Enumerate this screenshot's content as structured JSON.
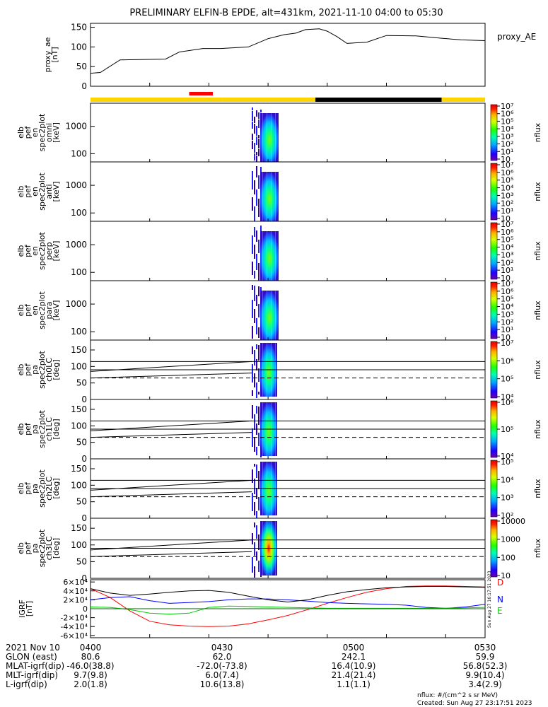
{
  "figure": {
    "title": "PRELIMINARY ELFIN-B EPDE, alt=431km, 2021-11-10 04:00 to 05:30",
    "created": "Created: Sun Aug 27 23:17:51 2023",
    "nflux_units": "nflux: #/(cm^2 s sr MeV)",
    "side_stamp": "Sun Aug 27 16:17:51 2023"
  },
  "chart_data": [
    {
      "type": "line",
      "panel": "proxy_ae",
      "ylabel_lines": [
        "proxy_ae",
        "[nT]"
      ],
      "legend": "proxy_AE",
      "ylim": [
        0,
        160
      ],
      "yticks": [
        "0",
        "50",
        "100",
        "150"
      ],
      "x_minutes": [
        0,
        5,
        15,
        25,
        38,
        45,
        57,
        66,
        80,
        90,
        98,
        104,
        109,
        116,
        120,
        125,
        130,
        140,
        150,
        165,
        178,
        188,
        200
      ],
      "values": [
        33,
        35,
        67,
        68,
        69,
        87,
        96,
        96,
        100,
        121,
        131,
        135,
        144,
        146,
        140,
        126,
        109,
        112,
        129,
        128,
        122,
        118,
        116
      ],
      "series": [
        {
          "name": "proxy_AE",
          "color": "#000000"
        }
      ]
    },
    {
      "type": "bar",
      "panel": "status_bar",
      "segments": [
        {
          "start_min": 0,
          "end_min": 67,
          "color": "#ffd500"
        },
        {
          "start_min": 67,
          "end_min": 114,
          "color": "#ffd500"
        },
        {
          "start_min": 114,
          "end_min": 178,
          "color": "#000000"
        },
        {
          "start_min": 178,
          "end_min": 200,
          "color": "#ffd500"
        }
      ],
      "markers": [
        {
          "start_min": 50,
          "end_min": 62,
          "color": "#ff0000"
        }
      ]
    },
    {
      "type": "heatmap",
      "panel": "spec_omni",
      "ylabel_lines": [
        "elb",
        "pef",
        "en",
        "spec2plot",
        "omni",
        "[keV]"
      ],
      "yscale": "log",
      "yticks": [
        "100",
        "1000"
      ],
      "zlabel": "nflux",
      "zticks": [
        "10",
        "10¹",
        "10²",
        "10³",
        "10⁴",
        "10⁵",
        "10⁶",
        "10⁷"
      ]
    },
    {
      "type": "heatmap",
      "panel": "spec_anti",
      "ylabel_lines": [
        "elb",
        "pef",
        "en",
        "spec2plot",
        "anti",
        "[keV]"
      ],
      "yscale": "log",
      "yticks": [
        "100",
        "1000"
      ],
      "zlabel": "nflux",
      "zticks": [
        "10",
        "10¹",
        "10²",
        "10³",
        "10⁴",
        "10⁵",
        "10⁶",
        "10⁷"
      ]
    },
    {
      "type": "heatmap",
      "panel": "spec_perp",
      "ylabel_lines": [
        "elb",
        "pef",
        "en",
        "spec2plot",
        "perp",
        "[keV]"
      ],
      "yscale": "log",
      "yticks": [
        "100",
        "1000"
      ],
      "zlabel": "nflux",
      "zticks": [
        "10",
        "10¹",
        "10²",
        "10³",
        "10⁴",
        "10⁵",
        "10⁶",
        "10⁷"
      ]
    },
    {
      "type": "heatmap",
      "panel": "spec_para",
      "ylabel_lines": [
        "elb",
        "pef",
        "en",
        "spec2plot",
        "para",
        "[keV]"
      ],
      "yscale": "log",
      "yticks": [
        "100",
        "1000"
      ],
      "zlabel": "nflux",
      "zticks": [
        "10",
        "10¹",
        "10²",
        "10³",
        "10⁴",
        "10⁵",
        "10⁶",
        "10⁷"
      ]
    },
    {
      "type": "heatmap",
      "panel": "pa_ch0",
      "ylabel_lines": [
        "elb",
        "pef",
        "pa",
        "spec2plot",
        "ch0LC",
        "[deg]"
      ],
      "ylim": [
        0,
        180
      ],
      "yticks": [
        "0",
        "50",
        "100",
        "150"
      ],
      "zlabel": "nflux",
      "zticks": [
        "10⁴",
        "10⁵",
        "10⁶",
        "10⁷"
      ]
    },
    {
      "type": "heatmap",
      "panel": "pa_ch1",
      "ylabel_lines": [
        "elb",
        "pef",
        "pa",
        "spec2plot",
        "ch1LC",
        "[deg]"
      ],
      "ylim": [
        0,
        180
      ],
      "yticks": [
        "0",
        "50",
        "100",
        "150"
      ],
      "zlabel": "nflux",
      "zticks": [
        "10⁴",
        "10⁵",
        "10⁶"
      ]
    },
    {
      "type": "heatmap",
      "panel": "pa_ch2",
      "ylabel_lines": [
        "elb",
        "pef",
        "pa",
        "spec2plot",
        "ch2LC",
        "[deg]"
      ],
      "ylim": [
        0,
        180
      ],
      "yticks": [
        "0",
        "50",
        "100",
        "150"
      ],
      "zlabel": "nflux",
      "zticks": [
        "10²",
        "10³",
        "10⁴",
        "10⁵"
      ]
    },
    {
      "type": "heatmap",
      "panel": "pa_ch3",
      "ylabel_lines": [
        "elb",
        "pef",
        "pa",
        "spec2plot",
        "ch3LC",
        "[deg]"
      ],
      "ylim": [
        0,
        180
      ],
      "yticks": [
        "0",
        "50",
        "100",
        "150"
      ],
      "zlabel": "nflux",
      "zticks": [
        "10",
        "100",
        "1000",
        "10000"
      ]
    },
    {
      "type": "line",
      "panel": "igrf",
      "ylabel_lines": [
        "IGRF",
        "[nT]"
      ],
      "ylim": [
        -65000,
        65000
      ],
      "yticks": [
        "-6×10⁴",
        "-4×10⁴",
        "-2×10⁴",
        "0",
        "2×10⁴",
        "4×10⁴",
        "6×10⁴"
      ],
      "x_minutes": [
        0,
        10,
        20,
        30,
        40,
        50,
        60,
        70,
        80,
        90,
        100,
        110,
        120,
        130,
        140,
        150,
        160,
        170,
        180,
        190,
        200
      ],
      "series": [
        {
          "name": "D",
          "color": "#ff0000",
          "values": [
            45000,
            25000,
            -5000,
            -28000,
            -36000,
            -39000,
            -40000,
            -39000,
            -34000,
            -25000,
            -15000,
            -2000,
            12000,
            25000,
            37000,
            45000,
            50000,
            51000,
            51000,
            50000,
            49000
          ]
        },
        {
          "name": "N",
          "color": "#0000ff",
          "values": [
            20000,
            25000,
            27000,
            18000,
            12000,
            14000,
            16000,
            20000,
            22000,
            22000,
            20000,
            17000,
            14000,
            12000,
            11000,
            10000,
            8000,
            3000,
            1000,
            4000,
            10000
          ]
        },
        {
          "name": "E",
          "color": "#00cc00",
          "values": [
            4000,
            3000,
            -2000,
            -10000,
            -12000,
            -10000,
            3000,
            6000,
            5000,
            4000,
            3000,
            2000,
            1000,
            1000,
            1000,
            1000,
            1000,
            1000,
            1000,
            2000,
            3000
          ]
        },
        {
          "name": "",
          "color": "#000000",
          "values": [
            45000,
            35000,
            30000,
            33000,
            37000,
            40000,
            41000,
            37000,
            28000,
            20000,
            15000,
            20000,
            30000,
            38000,
            43000,
            47000,
            49000,
            50000,
            50000,
            49000,
            48000
          ]
        },
        {
          "name": "",
          "color": "#006400",
          "values": [
            0,
            0,
            0,
            0,
            0,
            0,
            0,
            0,
            0,
            0,
            0,
            0,
            0,
            0,
            0,
            0,
            0,
            0,
            0,
            0,
            0
          ]
        }
      ]
    }
  ],
  "ephemeris": {
    "date_label": "2021 Nov 10",
    "times": [
      "0400",
      "0430",
      "0500",
      "0530"
    ],
    "rows": [
      {
        "label": "GLON (east)",
        "values": [
          "80.6",
          "62.0",
          "242.1",
          "59.9"
        ]
      },
      {
        "label": "MLAT-igrf(dip)",
        "values": [
          "-46.0(38.8)",
          "-72.0(-73.8)",
          "16.4(10.9)",
          "56.8(52.3)"
        ]
      },
      {
        "label": "MLT-igrf(dip)",
        "values": [
          "9.7(9.8)",
          "6.0(7.4)",
          "21.4(21.4)",
          "9.9(10.4)"
        ]
      },
      {
        "label": "L-igrf(dip)",
        "values": [
          "2.0(1.8)",
          "10.6(13.8)",
          "1.1(1.1)",
          "3.4(2.9)"
        ]
      }
    ]
  }
}
